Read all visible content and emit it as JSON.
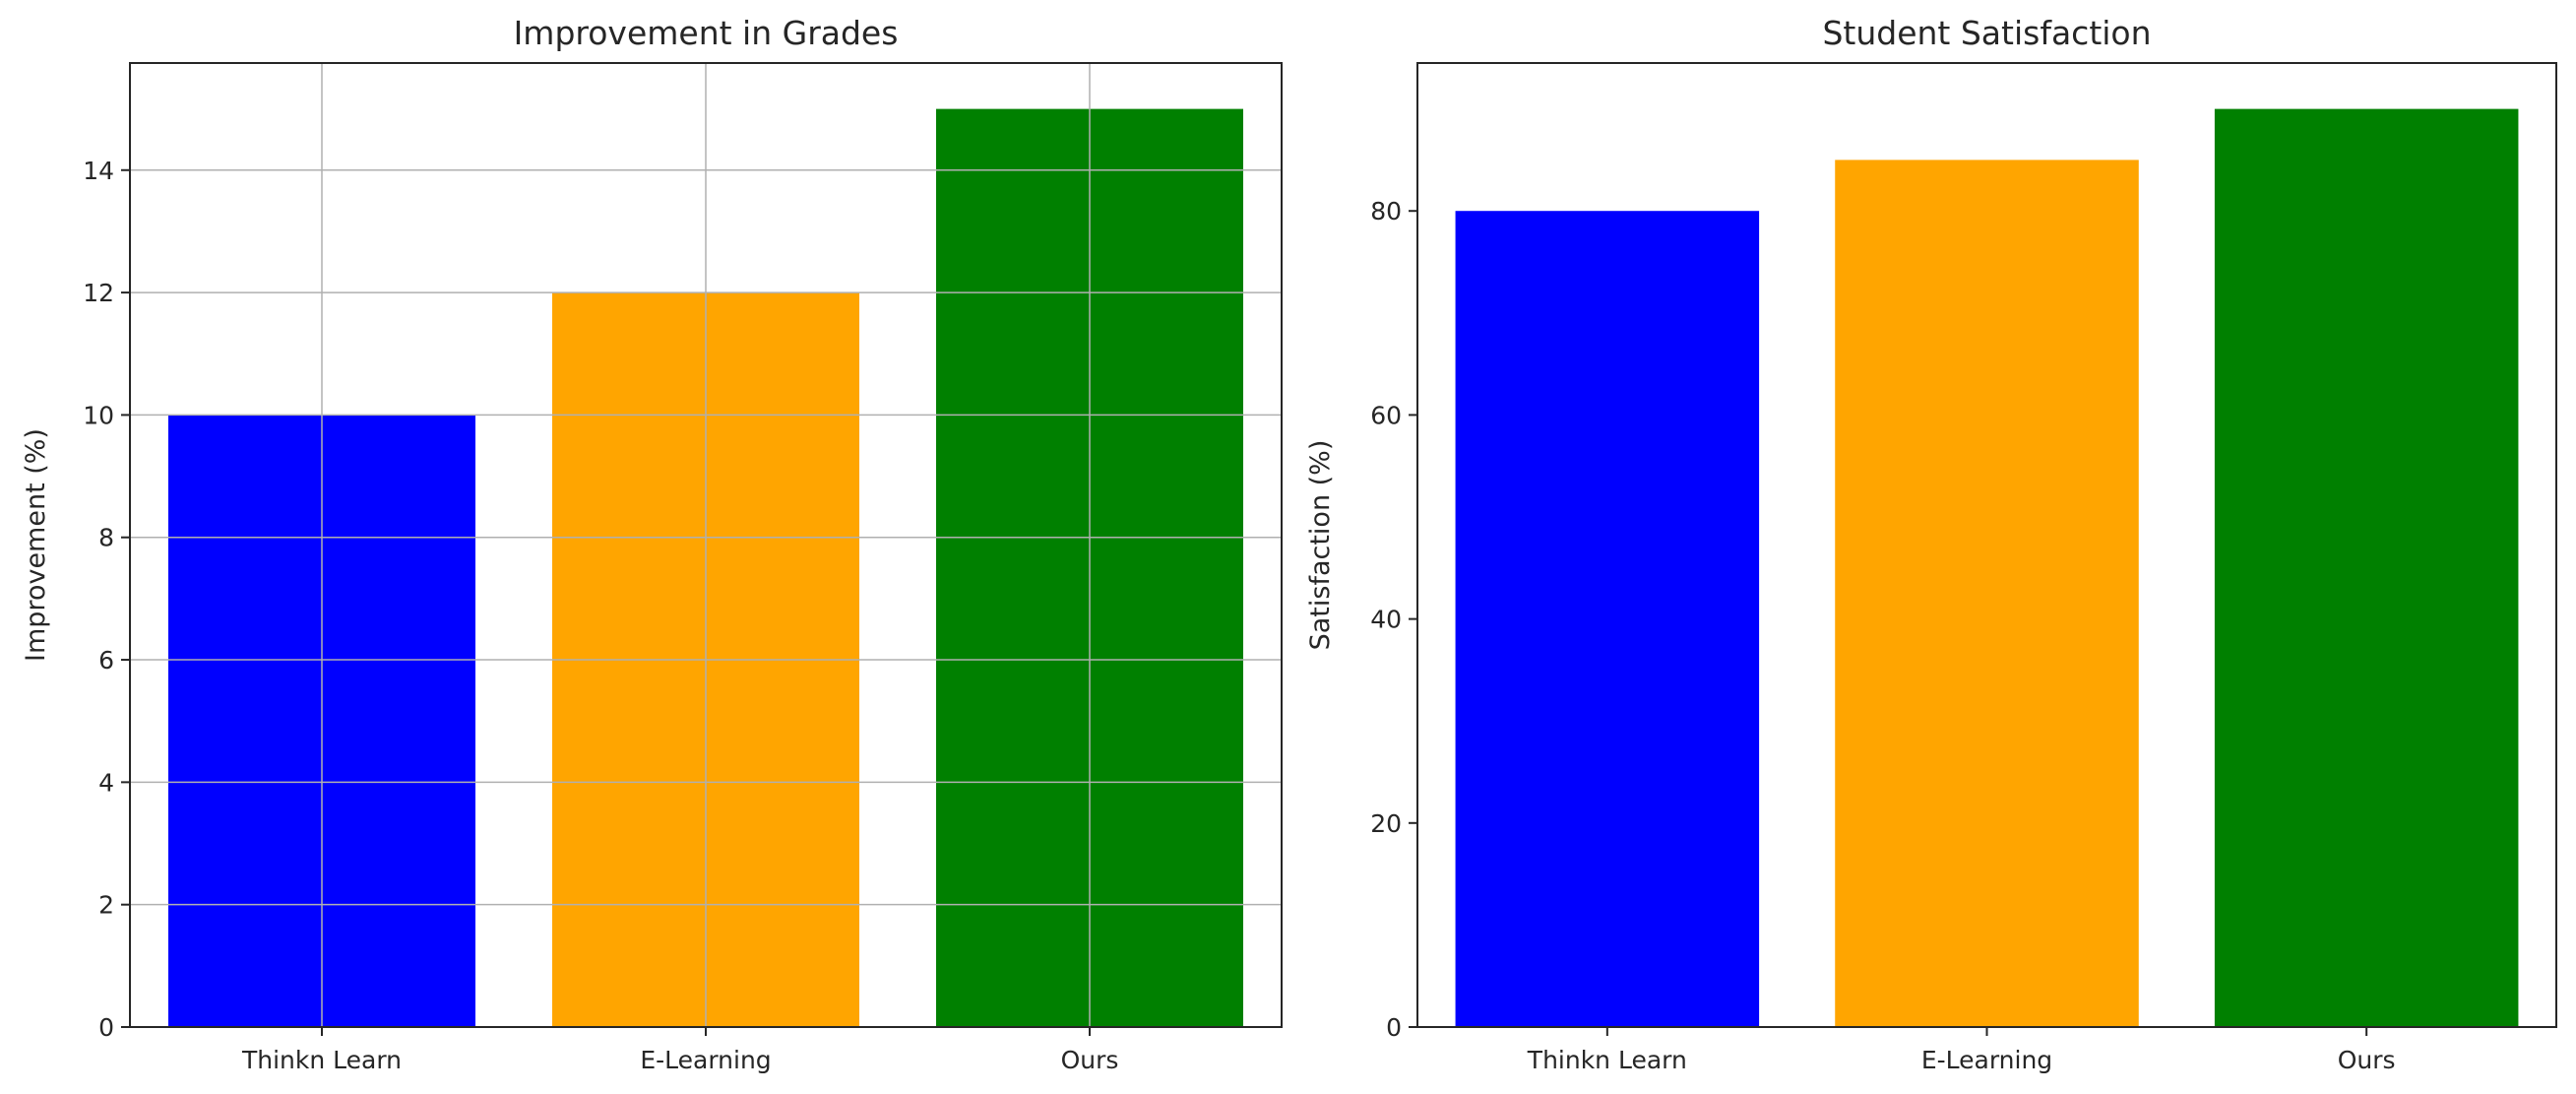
{
  "chart_data": [
    {
      "type": "bar",
      "title": "Improvement in Grades",
      "xlabel": "",
      "ylabel": "Improvement (%)",
      "categories": [
        "Thinkn Learn",
        "E-Learning",
        "Ours"
      ],
      "values": [
        10,
        12,
        15
      ],
      "colors": [
        "#0000ff",
        "#ffa500",
        "#008000"
      ],
      "ylim": [
        0,
        15.75
      ],
      "yticks": [
        0,
        2,
        4,
        6,
        8,
        10,
        12,
        14
      ],
      "grid": true
    },
    {
      "type": "bar",
      "title": "Student Satisfaction",
      "xlabel": "",
      "ylabel": "Satisfaction (%)",
      "categories": [
        "Thinkn Learn",
        "E-Learning",
        "Ours"
      ],
      "values": [
        80,
        85,
        90
      ],
      "colors": [
        "#0000ff",
        "#ffa500",
        "#008000"
      ],
      "ylim": [
        0,
        94.5
      ],
      "yticks": [
        0,
        20,
        40,
        60,
        80
      ],
      "grid": false
    }
  ]
}
